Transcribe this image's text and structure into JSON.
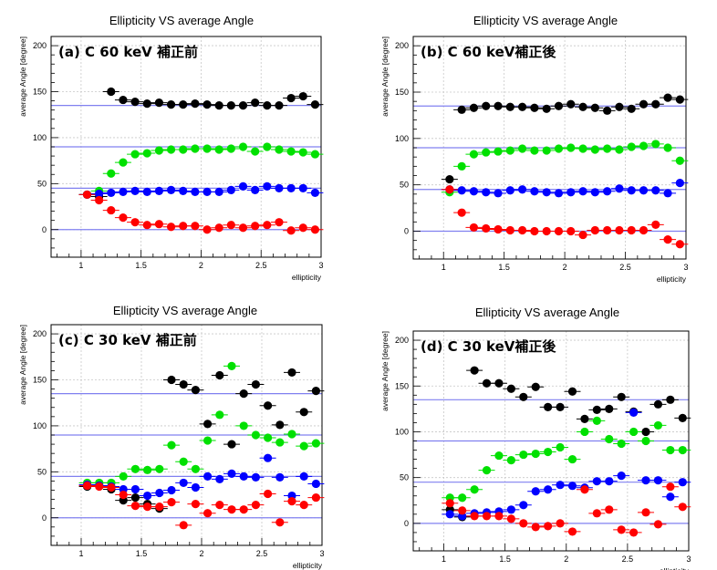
{
  "chart_data": [
    {
      "type": "scatter",
      "title": "Ellipticity VS average Angle",
      "panel_label": "(a) C 60 keV 補正前",
      "xlabel": "ellipticity",
      "ylabel": "average Angle [degree]",
      "xlim": [
        0.75,
        3.0
      ],
      "ylim": [
        -30,
        210
      ],
      "x_ticks": [
        "1",
        "1.5",
        "2",
        "2.5",
        "3"
      ],
      "y_ticks": [
        "0",
        "50",
        "100",
        "150",
        "200"
      ],
      "reference_lines": [
        0,
        45,
        90,
        135
      ],
      "grid": true,
      "series": [
        {
          "color": "#000000",
          "x": [
            1.05,
            1.15,
            1.25,
            1.35,
            1.45,
            1.55,
            1.65,
            1.75,
            1.85,
            1.95,
            2.05,
            2.15,
            2.25,
            2.35,
            2.45,
            2.55,
            2.65,
            2.75,
            2.85,
            2.95
          ],
          "y": [
            38,
            36,
            150,
            141,
            139,
            137,
            138,
            136,
            136,
            137,
            136,
            135,
            135,
            135,
            138,
            135,
            135,
            143,
            145,
            136
          ]
        },
        {
          "color": "#00e000",
          "x": [
            1.05,
            1.15,
            1.25,
            1.35,
            1.45,
            1.55,
            1.65,
            1.75,
            1.85,
            1.95,
            2.05,
            2.15,
            2.25,
            2.35,
            2.45,
            2.55,
            2.65,
            2.75,
            2.85,
            2.95
          ],
          "y": [
            38,
            42,
            61,
            73,
            82,
            83,
            86,
            87,
            87,
            88,
            88,
            87,
            88,
            90,
            85,
            90,
            87,
            85,
            84,
            82
          ]
        },
        {
          "color": "#0000ff",
          "x": [
            1.05,
            1.15,
            1.25,
            1.35,
            1.45,
            1.55,
            1.65,
            1.75,
            1.85,
            1.95,
            2.05,
            2.15,
            2.25,
            2.35,
            2.45,
            2.55,
            2.65,
            2.75,
            2.85,
            2.95
          ],
          "y": [
            38,
            39,
            40,
            41,
            42,
            41,
            42,
            43,
            42,
            41,
            41,
            41,
            43,
            47,
            43,
            47,
            45,
            45,
            45,
            40
          ]
        },
        {
          "color": "#ff0000",
          "x": [
            1.05,
            1.15,
            1.25,
            1.35,
            1.45,
            1.55,
            1.65,
            1.75,
            1.85,
            1.95,
            2.05,
            2.15,
            2.25,
            2.35,
            2.45,
            2.55,
            2.65,
            2.75,
            2.85,
            2.95
          ],
          "y": [
            38,
            32,
            21,
            13,
            8,
            5,
            6,
            3,
            4,
            4,
            0,
            2,
            5,
            2,
            4,
            5,
            8,
            -1,
            2,
            0
          ]
        }
      ]
    },
    {
      "type": "scatter",
      "title": "Ellipticity VS average Angle",
      "panel_label": "(b) C 60 keV補正後",
      "xlabel": "ellipticity",
      "ylabel": "average Angle [degree]",
      "xlim": [
        0.75,
        3.0
      ],
      "ylim": [
        -30,
        210
      ],
      "x_ticks": [
        "1",
        "1.5",
        "2",
        "2.5",
        "3"
      ],
      "y_ticks": [
        "0",
        "50",
        "100",
        "150",
        "200"
      ],
      "reference_lines": [
        0,
        45,
        90,
        135
      ],
      "grid": true,
      "series": [
        {
          "color": "#000000",
          "x": [
            1.05,
            1.15,
            1.25,
            1.35,
            1.45,
            1.55,
            1.65,
            1.75,
            1.85,
            1.95,
            2.05,
            2.15,
            2.25,
            2.35,
            2.45,
            2.55,
            2.65,
            2.75,
            2.85,
            2.95
          ],
          "y": [
            56,
            131,
            133,
            135,
            135,
            134,
            134,
            133,
            132,
            135,
            137,
            134,
            133,
            130,
            134,
            132,
            137,
            137,
            144,
            142
          ]
        },
        {
          "color": "#00e000",
          "x": [
            1.05,
            1.15,
            1.25,
            1.35,
            1.45,
            1.55,
            1.65,
            1.75,
            1.85,
            1.95,
            2.05,
            2.15,
            2.25,
            2.35,
            2.45,
            2.55,
            2.65,
            2.75,
            2.85,
            2.95
          ],
          "y": [
            42,
            70,
            83,
            85,
            86,
            87,
            89,
            87,
            87,
            89,
            90,
            89,
            88,
            89,
            88,
            91,
            92,
            94,
            90,
            76
          ]
        },
        {
          "color": "#0000ff",
          "x": [
            1.05,
            1.15,
            1.25,
            1.35,
            1.45,
            1.55,
            1.65,
            1.75,
            1.85,
            1.95,
            2.05,
            2.15,
            2.25,
            2.35,
            2.45,
            2.55,
            2.65,
            2.75,
            2.85,
            2.95
          ],
          "y": [
            45,
            44,
            43,
            42,
            41,
            44,
            45,
            43,
            42,
            41,
            42,
            43,
            42,
            43,
            46,
            44,
            44,
            44,
            41,
            52
          ]
        },
        {
          "color": "#ff0000",
          "x": [
            1.05,
            1.15,
            1.25,
            1.35,
            1.45,
            1.55,
            1.65,
            1.75,
            1.85,
            1.95,
            2.05,
            2.15,
            2.25,
            2.35,
            2.45,
            2.55,
            2.65,
            2.75,
            2.85,
            2.95
          ],
          "y": [
            45,
            20,
            4,
            3,
            2,
            1,
            1,
            0,
            0,
            0,
            0,
            -4,
            1,
            1,
            1,
            1,
            1,
            7,
            -9,
            -14
          ]
        }
      ]
    },
    {
      "type": "scatter",
      "title": "Ellipticity VS average Angle",
      "panel_label": "(c) C 30 keV 補正前",
      "xlabel": "ellipticity",
      "ylabel": "average Angle [degree]",
      "xlim": [
        0.75,
        3.0
      ],
      "ylim": [
        -30,
        210
      ],
      "x_ticks": [
        "1",
        "1.5",
        "2",
        "2.5",
        "3"
      ],
      "y_ticks": [
        "0",
        "50",
        "100",
        "150",
        "200"
      ],
      "reference_lines": [
        0,
        45,
        90,
        135
      ],
      "grid": true,
      "series": [
        {
          "color": "#000000",
          "x": [
            1.05,
            1.15,
            1.25,
            1.35,
            1.45,
            1.55,
            1.65,
            1.75,
            1.85,
            1.95,
            2.05,
            2.15,
            2.25,
            2.35,
            2.45,
            2.55,
            2.65,
            2.75,
            2.85,
            2.95
          ],
          "y": [
            34,
            35,
            31,
            19,
            22,
            15,
            10,
            150,
            145,
            139,
            102,
            155,
            80,
            135,
            145,
            122,
            101,
            158,
            115,
            138
          ]
        },
        {
          "color": "#00e000",
          "x": [
            1.05,
            1.15,
            1.25,
            1.35,
            1.45,
            1.55,
            1.65,
            1.75,
            1.85,
            1.95,
            2.05,
            2.15,
            2.25,
            2.35,
            2.45,
            2.55,
            2.65,
            2.75,
            2.85,
            2.95
          ],
          "y": [
            38,
            38,
            38,
            45,
            53,
            52,
            53,
            79,
            61,
            53,
            84,
            112,
            165,
            100,
            90,
            87,
            82,
            91,
            78,
            81
          ]
        },
        {
          "color": "#0000ff",
          "x": [
            1.05,
            1.15,
            1.25,
            1.35,
            1.45,
            1.55,
            1.65,
            1.75,
            1.85,
            1.95,
            2.05,
            2.15,
            2.25,
            2.35,
            2.45,
            2.55,
            2.65,
            2.75,
            2.85,
            2.95
          ],
          "y": [
            36,
            35,
            34,
            31,
            31,
            24,
            27,
            30,
            38,
            33,
            45,
            42,
            48,
            45,
            44,
            65,
            44,
            24,
            45,
            37
          ]
        },
        {
          "color": "#ff0000",
          "x": [
            1.05,
            1.15,
            1.25,
            1.35,
            1.45,
            1.55,
            1.65,
            1.75,
            1.85,
            1.95,
            2.05,
            2.15,
            2.25,
            2.35,
            2.45,
            2.55,
            2.65,
            2.75,
            2.85,
            2.95
          ],
          "y": [
            35,
            34,
            33,
            25,
            13,
            12,
            12,
            17,
            -8,
            15,
            5,
            14,
            9,
            9,
            14,
            26,
            -5,
            18,
            14,
            22
          ]
        }
      ]
    },
    {
      "type": "scatter",
      "title": "Ellipticity VS average Angle",
      "panel_label": "(d) C 30 keV補正後",
      "xlabel": "ellipticity",
      "ylabel": "average Angle [degree]",
      "xlim": [
        0.75,
        3.0
      ],
      "ylim": [
        -30,
        210
      ],
      "x_ticks": [
        "1",
        "1.5",
        "2",
        "2.5",
        "3"
      ],
      "y_ticks": [
        "0",
        "50",
        "100",
        "150",
        "200"
      ],
      "reference_lines": [
        0,
        45,
        90,
        135
      ],
      "grid": true,
      "series": [
        {
          "color": "#000000",
          "x": [
            1.05,
            1.15,
            1.25,
            1.35,
            1.45,
            1.55,
            1.65,
            1.75,
            1.85,
            1.95,
            2.05,
            2.15,
            2.25,
            2.35,
            2.45,
            2.55,
            2.65,
            2.75,
            2.85,
            2.95
          ],
          "y": [
            15,
            7,
            167,
            153,
            153,
            147,
            138,
            149,
            127,
            127,
            144,
            114,
            124,
            125,
            138,
            122,
            100,
            130,
            135,
            115
          ]
        },
        {
          "color": "#00e000",
          "x": [
            1.05,
            1.15,
            1.25,
            1.35,
            1.45,
            1.55,
            1.65,
            1.75,
            1.85,
            1.95,
            2.05,
            2.15,
            2.25,
            2.35,
            2.45,
            2.55,
            2.65,
            2.75,
            2.85,
            2.95
          ],
          "y": [
            28,
            28,
            37,
            58,
            74,
            69,
            75,
            76,
            78,
            83,
            70,
            100,
            112,
            92,
            87,
            100,
            90,
            107,
            80,
            80
          ]
        },
        {
          "color": "#0000ff",
          "x": [
            1.05,
            1.15,
            1.25,
            1.35,
            1.45,
            1.55,
            1.65,
            1.75,
            1.85,
            1.95,
            2.05,
            2.15,
            2.25,
            2.35,
            2.45,
            2.55,
            2.65,
            2.75,
            2.85,
            2.95
          ],
          "y": [
            10,
            8,
            11,
            12,
            13,
            15,
            20,
            35,
            37,
            42,
            41,
            39,
            46,
            46,
            52,
            121,
            47,
            47,
            29,
            45
          ]
        },
        {
          "color": "#ff0000",
          "x": [
            1.05,
            1.15,
            1.25,
            1.35,
            1.45,
            1.55,
            1.65,
            1.75,
            1.85,
            1.95,
            2.05,
            2.15,
            2.25,
            2.35,
            2.45,
            2.55,
            2.65,
            2.75,
            2.85,
            2.95
          ],
          "y": [
            22,
            14,
            8,
            8,
            8,
            5,
            0,
            -4,
            -3,
            0,
            -9,
            37,
            11,
            15,
            -7,
            -10,
            12,
            -1,
            40,
            18
          ]
        }
      ]
    }
  ]
}
